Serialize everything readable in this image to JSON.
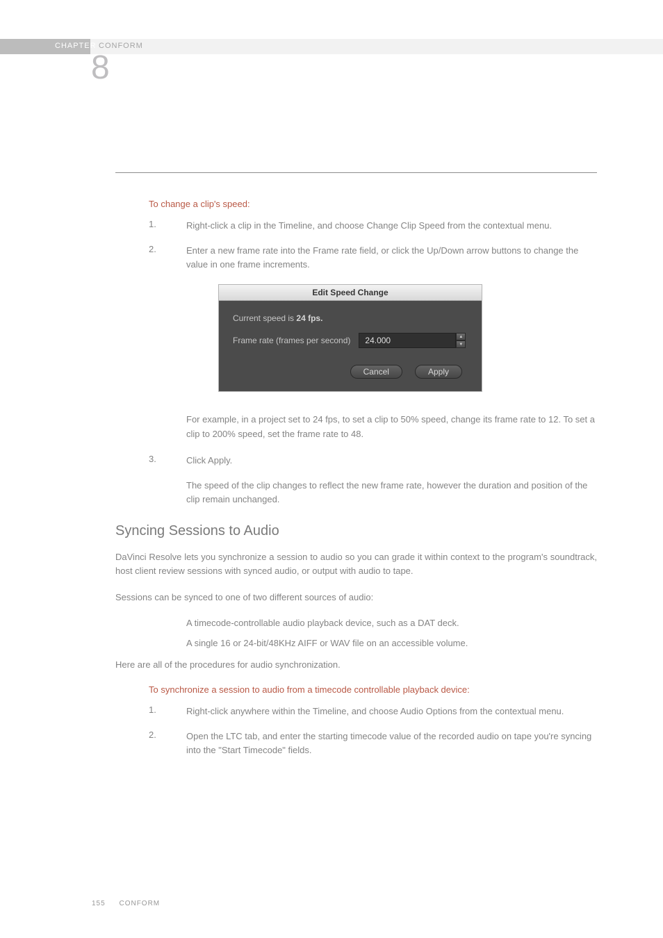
{
  "header": {
    "chapter_label": "CHAPTER",
    "chapter_title": "CONFORM",
    "chapter_number": "8",
    "accent_color": "#bcbcbc",
    "bar_color": "#f2f2f2"
  },
  "section1": {
    "heading": "To change a clip's speed:",
    "steps": [
      {
        "num": "1.",
        "text": "Right-click a clip in the Timeline, and choose Change Clip Speed from the contextual menu."
      },
      {
        "num": "2.",
        "text": "Enter a new frame rate into the Frame rate field, or click the Up/Down arrow buttons to change the value in one frame increments."
      }
    ],
    "after2_a": "For example, in a project set to 24 fps, to set a clip to 50% speed, change its frame rate to 12. To set a clip to 200% speed, set the frame rate to 48.",
    "step3": {
      "num": "3.",
      "text": "Click Apply."
    },
    "after3": "The speed of the clip changes to reflect the new frame rate, however the duration and position of the clip remain unchanged."
  },
  "dialog": {
    "title": "Edit Speed Change",
    "line1_prefix": "Current speed is ",
    "line1_value": "24 fps.",
    "label": "Frame rate (frames per second)",
    "value": "24.000",
    "cancel": "Cancel",
    "apply": "Apply",
    "bg": "#4b4b4b",
    "header_bg_top": "#f3f3f3",
    "header_bg_bottom": "#d9d9d9"
  },
  "section2": {
    "title": "Syncing Sessions to Audio",
    "p1": "DaVinci Resolve lets you synchronize a session to audio so you can grade it within context to the program's soundtrack, host client review sessions with synced audio, or output with audio to tape.",
    "p2": "Sessions can be synced to one of two different sources of audio:",
    "bullet1": "A timecode-controllable audio playback device, such as a DAT deck.",
    "bullet2": "A single 16 or 24-bit/48KHz AIFF or WAV file on an accessible volume.",
    "p3": "Here are all of the procedures for audio synchronization.",
    "sub": "To synchronize a session to audio from a timecode controllable playback device:",
    "steps": [
      {
        "num": "1.",
        "text": "Right-click anywhere within the Timeline, and choose Audio Options from the contextual menu."
      },
      {
        "num": "2.",
        "text": "Open the LTC tab, and enter the starting timecode value of the recorded audio on tape you're syncing into the \"Start Timecode\" fields."
      }
    ]
  },
  "footer": {
    "page": "155",
    "title": "CONFORM"
  },
  "colors": {
    "heading_accent": "#b95845",
    "body_text": "#848484",
    "rule": "#8c8c8c"
  }
}
